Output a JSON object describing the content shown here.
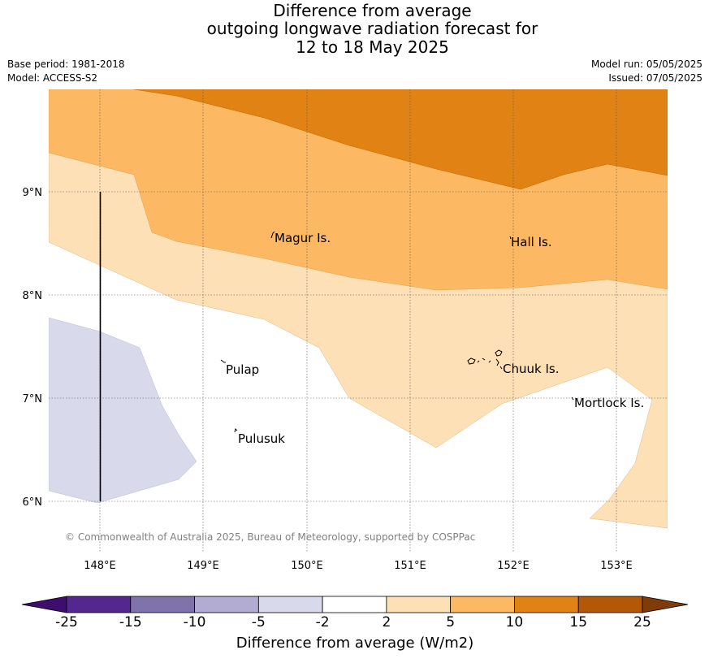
{
  "header": {
    "title_line1": "Difference from average",
    "title_line2": "outgoing longwave radiation forecast for",
    "title_line3": "12 to 18 May 2025",
    "base_period": "Base period: 1981-2018",
    "model": "Model: ACCESS-S2",
    "model_run": "Model run: 05/05/2025",
    "issued": "Issued: 07/05/2025"
  },
  "map": {
    "lat_ticks": [
      "9°N",
      "8°N",
      "7°N",
      "6°N"
    ],
    "lon_ticks": [
      "148°E",
      "149°E",
      "150°E",
      "151°E",
      "152°E",
      "153°E"
    ],
    "places": [
      "Magur Is.",
      "Hall Is.",
      "Pulap",
      "Chuuk Is.",
      "Mortlock Is.",
      "Pulusuk"
    ],
    "copyright": "© Commonwealth of Australia 2025, Bureau of Meteorology, supported by COSPPac"
  },
  "colorbar": {
    "title": "Difference from average (W/m2)",
    "ticks": [
      "-25",
      "-15",
      "-10",
      "-5",
      "-2",
      "2",
      "5",
      "10",
      "15",
      "25"
    ],
    "colors": [
      "#3f0d6b",
      "#54278f",
      "#8073ac",
      "#b2abd2",
      "#d8daeb",
      "#ffffff",
      "#fee0b6",
      "#fdb863",
      "#e08214",
      "#b35806",
      "#7f3b08"
    ]
  }
}
